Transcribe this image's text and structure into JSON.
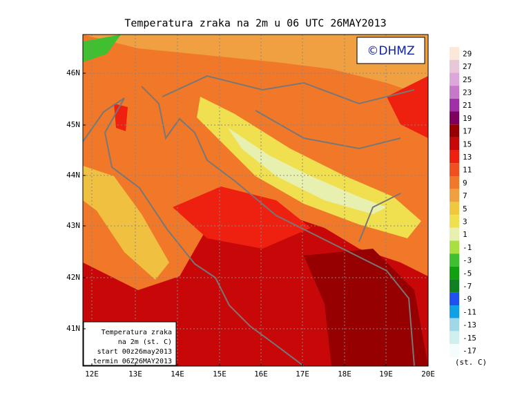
{
  "title": "Temperatura zraka na 2m u 06 UTC 26MAY2013",
  "copyright": "©DHMZ",
  "lat_labels": [
    "46N",
    "45N",
    "44N",
    "43N",
    "42N",
    "41N"
  ],
  "lon_labels": [
    "12E",
    "13E",
    "14E",
    "15E",
    "16E",
    "17E",
    "18E",
    "19E",
    "20E"
  ],
  "legend": {
    "items": [
      {
        "label": "29",
        "color": "#fbe8d8"
      },
      {
        "label": "27",
        "color": "#e8c8d8"
      },
      {
        "label": "25",
        "color": "#dca8dc"
      },
      {
        "label": "23",
        "color": "#c878c8"
      },
      {
        "label": "21",
        "color": "#a030a8"
      },
      {
        "label": "19",
        "color": "#800060"
      },
      {
        "label": "17",
        "color": "#960000"
      },
      {
        "label": "15",
        "color": "#c80808"
      },
      {
        "label": "13",
        "color": "#ee2010"
      },
      {
        "label": "11",
        "color": "#f05020"
      },
      {
        "label": "9",
        "color": "#f07828"
      },
      {
        "label": "7",
        "color": "#f0a040"
      },
      {
        "label": "5",
        "color": "#f0c840"
      },
      {
        "label": "3",
        "color": "#f0e050"
      },
      {
        "label": "1",
        "color": "#e8f0b0"
      },
      {
        "label": "-1",
        "color": "#a8e040"
      },
      {
        "label": "-3",
        "color": "#40c030"
      },
      {
        "label": "-5",
        "color": "#10a010"
      },
      {
        "label": "-7",
        "color": "#108020"
      },
      {
        "label": "-9",
        "color": "#2050f0"
      },
      {
        "label": "-11",
        "color": "#10a0e8"
      },
      {
        "label": "-13",
        "color": "#a0d8e8"
      },
      {
        "label": "-15",
        "color": "#d0f0f0"
      },
      {
        "label": "-17",
        "color": "#f4fcfc"
      }
    ],
    "unit": "(st. C)"
  },
  "info_box": [
    "Temperatura zraka",
    "na 2m (st. C)",
    "start 00z26may2013",
    "termin 06Z26MAY2013"
  ]
}
